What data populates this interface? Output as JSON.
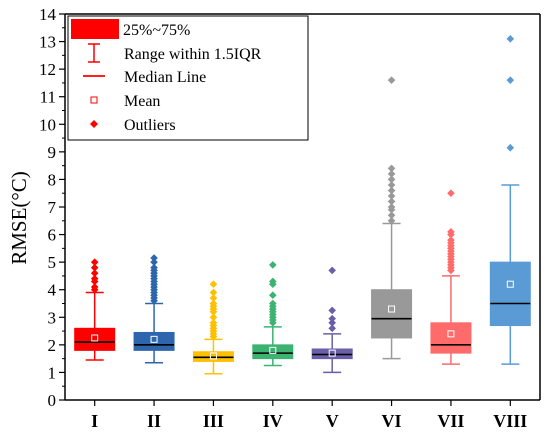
{
  "chart_data": {
    "type": "box",
    "ylabel": "RMSE(°C)",
    "ylim": [
      0,
      14
    ],
    "yticks": [
      0,
      1,
      2,
      3,
      4,
      5,
      6,
      7,
      8,
      9,
      10,
      11,
      12,
      13,
      14
    ],
    "categories": [
      "I",
      "II",
      "III",
      "IV",
      "V",
      "VI",
      "VII",
      "VIII"
    ],
    "legend": {
      "placement": "top-left",
      "items": [
        {
          "symbol": "box",
          "label": "25%~75%"
        },
        {
          "symbol": "whisker",
          "label": "Range within 1.5IQR"
        },
        {
          "symbol": "line",
          "label": "Median Line"
        },
        {
          "symbol": "square",
          "label": "Mean"
        },
        {
          "symbol": "diamond",
          "label": "Outliers"
        }
      ]
    },
    "series": [
      {
        "category": "I",
        "color": "#ff0000",
        "q1": 1.8,
        "median": 2.1,
        "q3": 2.6,
        "mean": 2.25,
        "whisker_low": 1.45,
        "whisker_high": 3.9,
        "outliers": [
          4.0,
          4.1,
          4.3,
          4.4,
          4.6,
          4.8,
          5.0
        ]
      },
      {
        "category": "II",
        "color": "#2e66ad",
        "q1": 1.8,
        "median": 2.0,
        "q3": 2.45,
        "mean": 2.2,
        "whisker_low": 1.35,
        "whisker_high": 3.5,
        "outliers": [
          3.6,
          3.7,
          3.8,
          3.9,
          4.0,
          4.1,
          4.2,
          4.3,
          4.4,
          4.5,
          4.6,
          4.7,
          4.8,
          5.0,
          5.15
        ]
      },
      {
        "category": "III",
        "color": "#ffc000",
        "q1": 1.4,
        "median": 1.55,
        "q3": 1.75,
        "mean": 1.6,
        "whisker_low": 0.95,
        "whisker_high": 2.2,
        "outliers": [
          2.3,
          2.4,
          2.5,
          2.6,
          2.7,
          2.8,
          3.0,
          3.2,
          3.3,
          3.4,
          3.5,
          3.7,
          3.9,
          4.2
        ]
      },
      {
        "category": "IV",
        "color": "#3cb371",
        "q1": 1.5,
        "median": 1.7,
        "q3": 2.0,
        "mean": 1.8,
        "whisker_low": 1.25,
        "whisker_high": 2.65,
        "outliers": [
          2.8,
          2.9,
          3.0,
          3.1,
          3.2,
          3.3,
          3.4,
          3.5,
          3.8,
          4.2,
          4.3,
          4.9
        ]
      },
      {
        "category": "V",
        "color": "#6a5fa8",
        "q1": 1.5,
        "median": 1.65,
        "q3": 1.85,
        "mean": 1.7,
        "whisker_low": 1.0,
        "whisker_high": 2.4,
        "outliers": [
          2.6,
          2.8,
          2.95,
          3.25,
          4.7
        ]
      },
      {
        "category": "VI",
        "color": "#999999",
        "q1": 2.25,
        "median": 2.95,
        "q3": 4.0,
        "mean": 3.3,
        "whisker_low": 1.5,
        "whisker_high": 6.4,
        "outliers": [
          6.5,
          6.7,
          6.9,
          7.0,
          7.2,
          7.4,
          7.6,
          7.8,
          8.0,
          8.2,
          8.4,
          11.6
        ]
      },
      {
        "category": "VII",
        "color": "#ff6b6b",
        "q1": 1.7,
        "median": 2.0,
        "q3": 2.8,
        "mean": 2.4,
        "whisker_low": 1.3,
        "whisker_high": 4.5,
        "outliers": [
          4.7,
          4.8,
          4.9,
          5.0,
          5.1,
          5.2,
          5.3,
          5.4,
          5.5,
          5.6,
          5.7,
          5.8,
          6.0,
          6.1,
          7.5
        ]
      },
      {
        "category": "VIII",
        "color": "#5b9bd5",
        "q1": 2.7,
        "median": 3.5,
        "q3": 5.0,
        "mean": 4.2,
        "whisker_low": 1.3,
        "whisker_high": 7.8,
        "outliers": [
          9.15,
          11.6,
          13.1
        ]
      }
    ]
  }
}
